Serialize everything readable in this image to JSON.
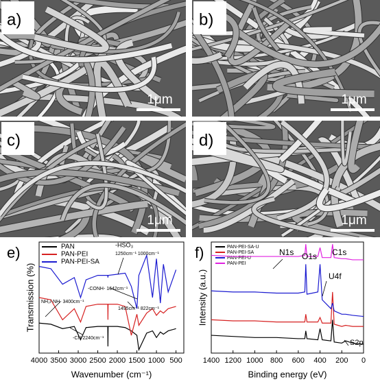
{
  "panels": [
    {
      "label": "a)",
      "scale_bar": "1μm"
    },
    {
      "label": "b)",
      "scale_bar": "1μm"
    },
    {
      "label": "c)",
      "scale_bar": "1μm"
    },
    {
      "label": "d)",
      "scale_bar": "1μm"
    }
  ],
  "chart_data": [
    {
      "type": "line",
      "panel_label": "e)",
      "xlabel": "Wavenumber (cm⁻¹)",
      "ylabel": "Transmission (%)",
      "x": [
        4000,
        3700,
        3400,
        3100,
        2940,
        2800,
        2500,
        2245,
        2240,
        2235,
        2000,
        1800,
        1642,
        1500,
        1450,
        1250,
        1100,
        1000,
        900,
        822,
        700,
        500
      ],
      "xlim": [
        4000,
        300
      ],
      "xticks": [
        4000,
        3500,
        3000,
        2500,
        2000,
        1500,
        1000,
        500
      ],
      "ylim": [
        0,
        100
      ],
      "series": [
        {
          "name": "PAN",
          "color": "#000000",
          "values": [
            27,
            26,
            22,
            24,
            12,
            23,
            24,
            24,
            6,
            24,
            24,
            23,
            20,
            16,
            3,
            18,
            20,
            14,
            19,
            17,
            20,
            22
          ]
        },
        {
          "name": "PAN-PEI",
          "color": "#d62020",
          "values": [
            50,
            48,
            30,
            40,
            28,
            42,
            44,
            44,
            30,
            44,
            44,
            42,
            16,
            35,
            25,
            36,
            40,
            34,
            38,
            36,
            40,
            42
          ]
        },
        {
          "name": "PAN-PEI-SA",
          "color": "#1a1ad0",
          "values": [
            78,
            76,
            62,
            68,
            50,
            66,
            70,
            70,
            68,
            70,
            71,
            72,
            60,
            40,
            70,
            88,
            50,
            85,
            45,
            80,
            55,
            75
          ]
        }
      ],
      "annotations": [
        "-HSO₃",
        "1250cm⁻¹ 1000cm⁻¹",
        "NH₂/-NH- 3400cm⁻¹",
        "-CONH- 1642cm⁻¹",
        "1495cm⁻¹ 822cm⁻¹",
        "-CN 2240cm⁻¹"
      ]
    },
    {
      "type": "line",
      "panel_label": "f)",
      "xlabel": "Binding energy (eV)",
      "ylabel": "Intensity (a.u.)",
      "x": [
        1400,
        1200,
        1000,
        800,
        600,
        540,
        531,
        520,
        420,
        400,
        380,
        300,
        285,
        270,
        200,
        165,
        100,
        0
      ],
      "xlim": [
        1400,
        0
      ],
      "xticks": [
        1400,
        1200,
        1000,
        800,
        600,
        400,
        200,
        0
      ],
      "ylim": [
        0,
        100
      ],
      "series": [
        {
          "name": "PAN-PEI-SA-U",
          "color": "#000000",
          "values": [
            16,
            15,
            14,
            14,
            13,
            13,
            20,
            13,
            12,
            22,
            12,
            11,
            30,
            10,
            9,
            11,
            9,
            8
          ]
        },
        {
          "name": "PAN-PEI-SA",
          "color": "#d62020",
          "values": [
            30,
            29,
            29,
            28,
            28,
            28,
            35,
            28,
            28,
            32,
            27,
            27,
            55,
            26,
            24,
            25,
            24,
            24
          ]
        },
        {
          "name": "PAN-PEI-U",
          "color": "#1a1ad0",
          "values": [
            56,
            55,
            55,
            54,
            54,
            55,
            80,
            53,
            55,
            80,
            48,
            40,
            45,
            38,
            35,
            35,
            34,
            33
          ]
        },
        {
          "name": "PAN-PEI",
          "color": "#e020e0",
          "values": [
            88,
            87,
            87,
            87,
            87,
            88,
            98,
            87,
            87,
            95,
            86,
            86,
            98,
            86,
            85,
            85,
            84,
            84
          ]
        }
      ],
      "annotations": [
        "O1s",
        "N1s",
        "C1s",
        "U4f",
        "S2p"
      ]
    }
  ]
}
